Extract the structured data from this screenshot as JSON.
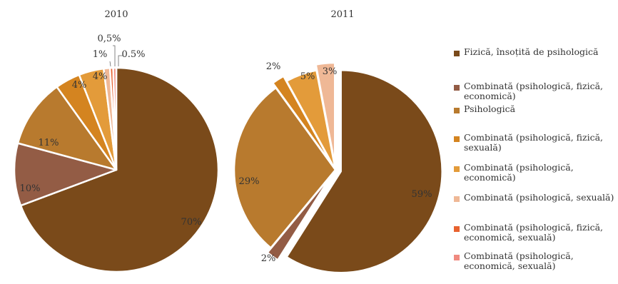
{
  "chart_data": [
    {
      "type": "pie",
      "title": "2010",
      "categories": [
        "Fizică, însoțită de psihologică",
        "Combinată (psihologică, fizică, economică)",
        "Psihologică",
        "Combinată (psihologică, fizică, sexuală)",
        "Combinată (psihologică, economică)",
        "Combinată (psihologică, sexuală)",
        "Combinată (psihologică, fizică, economică, sexuală)",
        "Combinată (psihologică, economică, sexuală)"
      ],
      "values": [
        70,
        10,
        11,
        4,
        4,
        1,
        0.5,
        0.5
      ],
      "labels": [
        "70%",
        "10%",
        "11%",
        "4%",
        "4%",
        "1%",
        "0,5%",
        "0.5%"
      ]
    },
    {
      "type": "pie",
      "title": "2011",
      "categories": [
        "Fizică, însoțită de psihologică",
        "Combinată (psihologică, fizică, economică)",
        "Psihologică",
        "Combinată (psihologică, fizică, sexuală)",
        "Combinată (psihologică, economică)",
        "Combinată (psihologică, sexuală)"
      ],
      "values": [
        59,
        2,
        29,
        2,
        5,
        3
      ],
      "labels": [
        "59%",
        "2%",
        "29%",
        "2%",
        "5%",
        "3%"
      ]
    }
  ],
  "legend": [
    {
      "label": "Fizică, însoțită de psihologică",
      "color": "#7a4a1a"
    },
    {
      "label": "Combinată (psihologică, fizică, economică)",
      "color": "#935c45"
    },
    {
      "label": "Psihologică",
      "color": "#b87a2e"
    },
    {
      "label": "Combinată (psihologică, fizică, sexuală)",
      "color": "#d48420"
    },
    {
      "label": "Combinată (psihologică, economică)",
      "color": "#e39b3a"
    },
    {
      "label": "Combinată (psihologică, sexuală)",
      "color": "#efb896"
    },
    {
      "label": "Combinată (psihologică, fizică, economică, sexuală)",
      "color": "#e8622f"
    },
    {
      "label": "Combinată (psihologică, economică, sexuală)",
      "color": "#f08a80"
    }
  ],
  "colors": [
    "#7a4a1a",
    "#935c45",
    "#b87a2e",
    "#d48420",
    "#e39b3a",
    "#efb896",
    "#e8622f",
    "#f08a80"
  ]
}
